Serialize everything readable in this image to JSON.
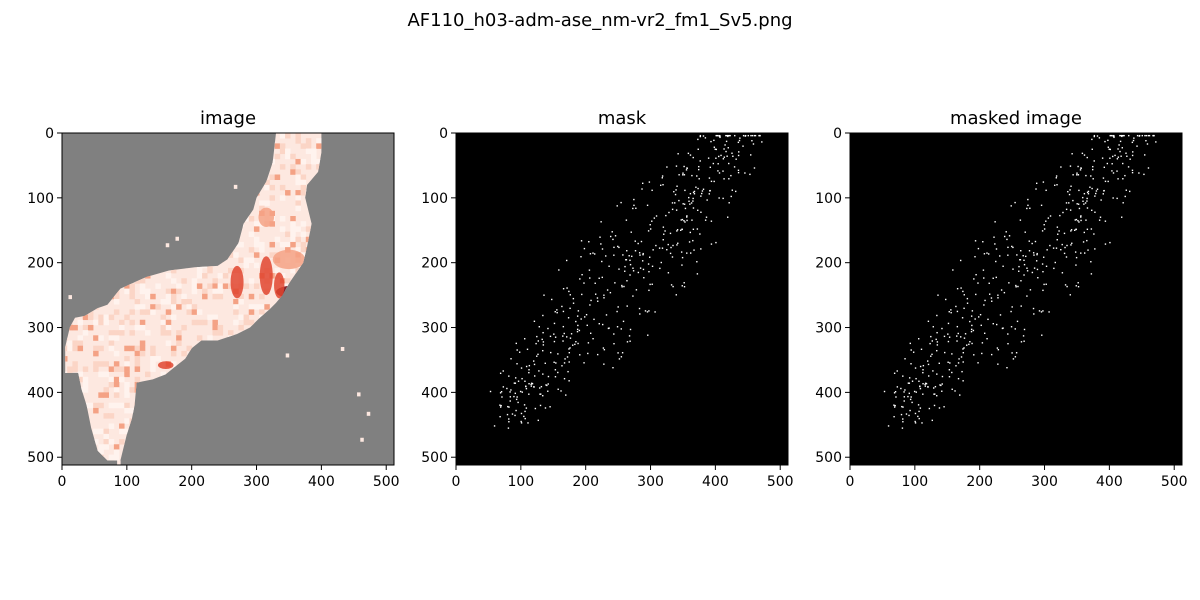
{
  "figure": {
    "title": "AF110_h03-adm-ase_nm-vr2_fm1_Sv5.png"
  },
  "chart_data": [
    {
      "type": "heatmap",
      "title": "image",
      "xlim": [
        0,
        512
      ],
      "ylim": [
        512,
        0
      ],
      "xticks": [
        0,
        100,
        200,
        300,
        400,
        500
      ],
      "yticks": [
        0,
        100,
        200,
        300,
        400,
        500
      ],
      "colormap": "Reds",
      "background_color": "#808080",
      "grid": false
    },
    {
      "type": "heatmap",
      "title": "mask",
      "xlim": [
        0,
        512
      ],
      "ylim": [
        512,
        0
      ],
      "xticks": [
        0,
        100,
        200,
        300,
        400,
        500
      ],
      "yticks": [
        0,
        100,
        200,
        300,
        400,
        500
      ],
      "background_color": "#000000",
      "point_color": "#ffffff",
      "grid": false
    },
    {
      "type": "heatmap",
      "title": "masked image",
      "xlim": [
        0,
        512
      ],
      "ylim": [
        512,
        0
      ],
      "xticks": [
        0,
        100,
        200,
        300,
        400,
        500
      ],
      "yticks": [
        0,
        100,
        200,
        300,
        400,
        500
      ],
      "background_color": "#000000",
      "point_color": "#ffffff",
      "grid": false
    }
  ],
  "colors": {
    "reds_light": "#fde8e0",
    "reds_mid": "#f4a285",
    "reds_strong": "#e0452f",
    "reds_dark": "#67000d",
    "gray_bg": "#808080"
  }
}
